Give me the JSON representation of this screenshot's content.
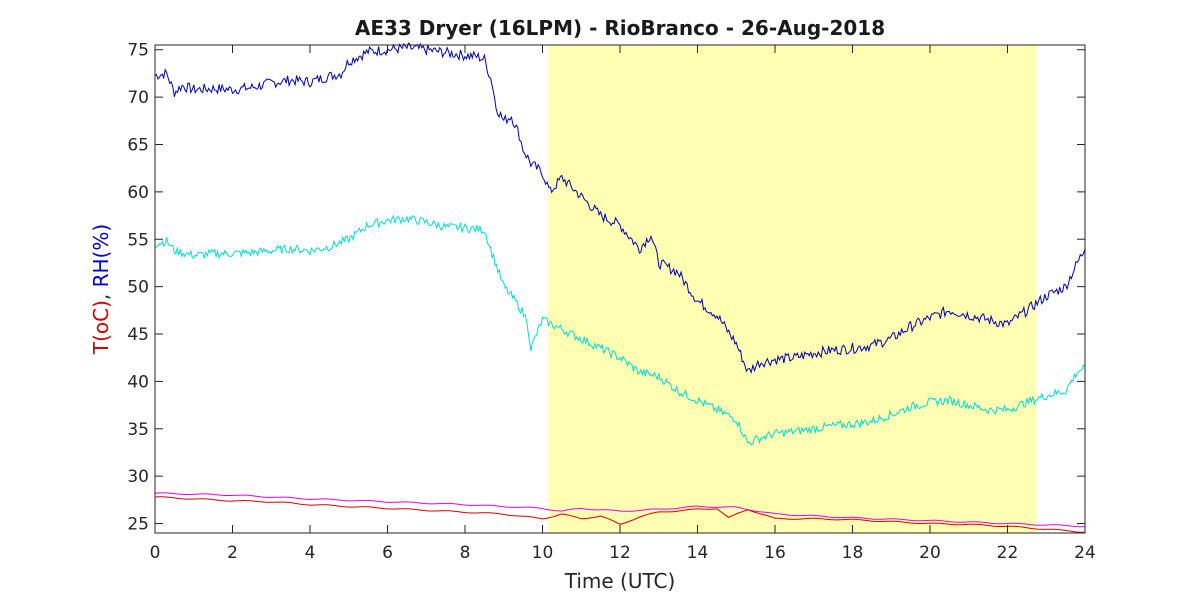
{
  "chart_data": {
    "type": "line",
    "title": "AE33 Dryer (16LPM)  - RioBranco - 26-Aug-2018",
    "xlabel": "Time (UTC)",
    "ylabel_parts": [
      {
        "text": "T(oC)",
        "color": "#d40000"
      },
      {
        "text": ", ",
        "color": "#262626"
      },
      {
        "text": "RH(%)",
        "color": "#0000cc"
      }
    ],
    "xlim": [
      0,
      24
    ],
    "ylim": [
      24,
      75.5
    ],
    "xticks": [
      0,
      2,
      4,
      6,
      8,
      10,
      12,
      14,
      16,
      18,
      20,
      22,
      24
    ],
    "yticks": [
      25,
      30,
      35,
      40,
      45,
      50,
      55,
      60,
      65,
      70,
      75
    ],
    "highlight": {
      "x_start": 10.15,
      "x_end": 22.75,
      "color": "#ffffb3"
    },
    "series": [
      {
        "color": "#0000b3",
        "points": [
          [
            0,
            72.3
          ],
          [
            0.3,
            72.5
          ],
          [
            0.5,
            70.5
          ],
          [
            0.7,
            71.2
          ],
          [
            1.0,
            70.8
          ],
          [
            1.5,
            70.9
          ],
          [
            2.0,
            70.8
          ],
          [
            2.5,
            71.0
          ],
          [
            3.0,
            71.5
          ],
          [
            3.5,
            71.8
          ],
          [
            4.0,
            71.6
          ],
          [
            4.5,
            72.2
          ],
          [
            4.8,
            72.5
          ],
          [
            5.0,
            73.8
          ],
          [
            5.5,
            74.8
          ],
          [
            6.0,
            75.0
          ],
          [
            6.5,
            75.2
          ],
          [
            7.0,
            75.0
          ],
          [
            7.5,
            74.7
          ],
          [
            8.0,
            74.4
          ],
          [
            8.3,
            74.3
          ],
          [
            8.5,
            74.0
          ],
          [
            8.7,
            71.5
          ],
          [
            8.8,
            69.0
          ],
          [
            9.0,
            67.5
          ],
          [
            9.2,
            68.0
          ],
          [
            9.4,
            66.0
          ],
          [
            9.5,
            64.5
          ],
          [
            9.7,
            63.0
          ],
          [
            10.0,
            62.0
          ],
          [
            10.2,
            60.0
          ],
          [
            10.5,
            61.5
          ],
          [
            11.0,
            59.5
          ],
          [
            11.5,
            57.5
          ],
          [
            12.0,
            56.5
          ],
          [
            12.5,
            54.0
          ],
          [
            12.8,
            55.5
          ],
          [
            13.0,
            52.5
          ],
          [
            13.5,
            51.5
          ],
          [
            14.0,
            48.5
          ],
          [
            14.5,
            47.0
          ],
          [
            15.0,
            44.0
          ],
          [
            15.3,
            41.0
          ],
          [
            15.6,
            42.0
          ],
          [
            16.0,
            42.3
          ],
          [
            16.5,
            42.5
          ],
          [
            17.0,
            43.0
          ],
          [
            17.5,
            43.3
          ],
          [
            18.0,
            43.5
          ],
          [
            18.5,
            43.8
          ],
          [
            19.0,
            44.5
          ],
          [
            19.5,
            45.8
          ],
          [
            20.0,
            46.7
          ],
          [
            20.5,
            47.5
          ],
          [
            21.0,
            47.0
          ],
          [
            21.5,
            46.5
          ],
          [
            22.0,
            46.0
          ],
          [
            22.5,
            47.5
          ],
          [
            23.0,
            49.0
          ],
          [
            23.5,
            50.0
          ],
          [
            23.8,
            52.5
          ],
          [
            24.0,
            54.0
          ]
        ]
      },
      {
        "color": "#00dcdc",
        "points": [
          [
            0,
            54.5
          ],
          [
            0.3,
            54.8
          ],
          [
            0.5,
            53.8
          ],
          [
            1.0,
            53.3
          ],
          [
            1.5,
            53.5
          ],
          [
            2.0,
            53.5
          ],
          [
            2.5,
            53.6
          ],
          [
            3.0,
            53.8
          ],
          [
            3.5,
            54.0
          ],
          [
            4.0,
            53.8
          ],
          [
            4.5,
            54.2
          ],
          [
            5.0,
            55.0
          ],
          [
            5.5,
            56.5
          ],
          [
            6.0,
            57.0
          ],
          [
            6.5,
            57.2
          ],
          [
            7.0,
            56.8
          ],
          [
            7.5,
            56.3
          ],
          [
            8.0,
            56.2
          ],
          [
            8.5,
            56.0
          ],
          [
            8.7,
            53.5
          ],
          [
            9.0,
            50.0
          ],
          [
            9.3,
            48.5
          ],
          [
            9.6,
            46.5
          ],
          [
            9.7,
            43.5
          ],
          [
            10.0,
            46.5
          ],
          [
            10.5,
            45.5
          ],
          [
            11.0,
            44.5
          ],
          [
            11.5,
            43.5
          ],
          [
            12.0,
            42.5
          ],
          [
            12.5,
            41.0
          ],
          [
            13.0,
            40.5
          ],
          [
            13.5,
            39.0
          ],
          [
            14.0,
            38.0
          ],
          [
            14.5,
            37.0
          ],
          [
            15.0,
            36.0
          ],
          [
            15.3,
            33.5
          ],
          [
            15.6,
            34.0
          ],
          [
            16.0,
            34.5
          ],
          [
            16.5,
            34.7
          ],
          [
            17.0,
            35.0
          ],
          [
            17.5,
            35.3
          ],
          [
            18.0,
            35.5
          ],
          [
            18.5,
            35.8
          ],
          [
            19.0,
            36.5
          ],
          [
            19.5,
            37.3
          ],
          [
            20.0,
            37.8
          ],
          [
            20.5,
            38.0
          ],
          [
            21.0,
            37.5
          ],
          [
            21.5,
            37.0
          ],
          [
            22.0,
            37.0
          ],
          [
            22.5,
            37.8
          ],
          [
            23.0,
            38.5
          ],
          [
            23.5,
            39.0
          ],
          [
            23.8,
            41.0
          ],
          [
            24.0,
            41.5
          ]
        ]
      },
      {
        "color": "#e600e6",
        "points": [
          [
            0,
            28.2
          ],
          [
            2,
            28.0
          ],
          [
            4,
            27.6
          ],
          [
            6,
            27.3
          ],
          [
            8,
            27.0
          ],
          [
            10,
            26.6
          ],
          [
            10.5,
            26.3
          ],
          [
            11,
            26.6
          ],
          [
            12,
            26.3
          ],
          [
            13,
            26.5
          ],
          [
            14,
            26.8
          ],
          [
            15,
            26.7
          ],
          [
            16,
            26.0
          ],
          [
            18,
            25.6
          ],
          [
            20,
            25.3
          ],
          [
            22,
            25.0
          ],
          [
            24,
            24.7
          ]
        ]
      },
      {
        "color": "#d40000",
        "points": [
          [
            0,
            27.8
          ],
          [
            1,
            27.6
          ],
          [
            2,
            27.4
          ],
          [
            3,
            27.3
          ],
          [
            4,
            27.0
          ],
          [
            5,
            26.8
          ],
          [
            6,
            26.6
          ],
          [
            7,
            26.4
          ],
          [
            8,
            26.2
          ],
          [
            9,
            26.0
          ],
          [
            10,
            25.5
          ],
          [
            10.5,
            26.0
          ],
          [
            11,
            25.5
          ],
          [
            11.5,
            25.8
          ],
          [
            12,
            24.9
          ],
          [
            12.5,
            25.7
          ],
          [
            13,
            26.2
          ],
          [
            14,
            26.5
          ],
          [
            14.5,
            26.6
          ],
          [
            14.8,
            25.6
          ],
          [
            15.3,
            26.5
          ],
          [
            15.8,
            25.8
          ],
          [
            16,
            25.5
          ],
          [
            17,
            25.5
          ],
          [
            18,
            25.4
          ],
          [
            19,
            25.2
          ],
          [
            20,
            25.0
          ],
          [
            21,
            24.9
          ],
          [
            22,
            24.7
          ],
          [
            23,
            24.4
          ],
          [
            24,
            24.1
          ]
        ]
      }
    ]
  }
}
